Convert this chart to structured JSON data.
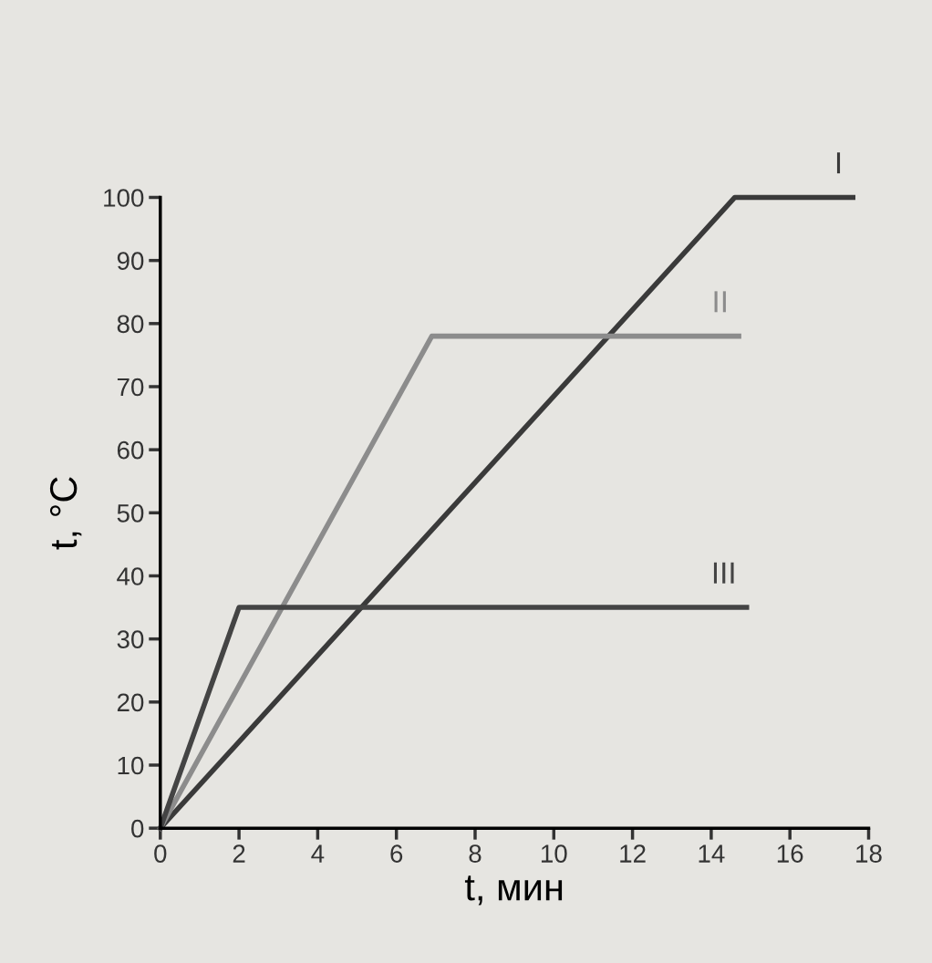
{
  "chart_data": {
    "type": "line",
    "xlabel": "t, мин",
    "ylabel": "t, °C",
    "xlim": [
      0,
      18
    ],
    "ylim": [
      0,
      100
    ],
    "xticks": [
      0,
      2,
      4,
      6,
      8,
      10,
      12,
      14,
      16,
      18
    ],
    "yticks": [
      0,
      10,
      20,
      30,
      40,
      50,
      60,
      70,
      80,
      90,
      100
    ],
    "grid": false,
    "legend": false,
    "marker": "none",
    "line_style": "solid",
    "series": [
      {
        "name": "I",
        "color": "#3a3a3a",
        "x": [
          0,
          14.6,
          17.6
        ],
        "values": [
          0,
          100,
          100
        ]
      },
      {
        "name": "II",
        "color": "#8c8c8c",
        "x": [
          0,
          6.9,
          14.7
        ],
        "values": [
          0,
          78,
          78
        ]
      },
      {
        "name": "III",
        "color": "#444444",
        "x": [
          0,
          2.0,
          14.9
        ],
        "values": [
          0,
          35,
          35
        ]
      }
    ]
  }
}
